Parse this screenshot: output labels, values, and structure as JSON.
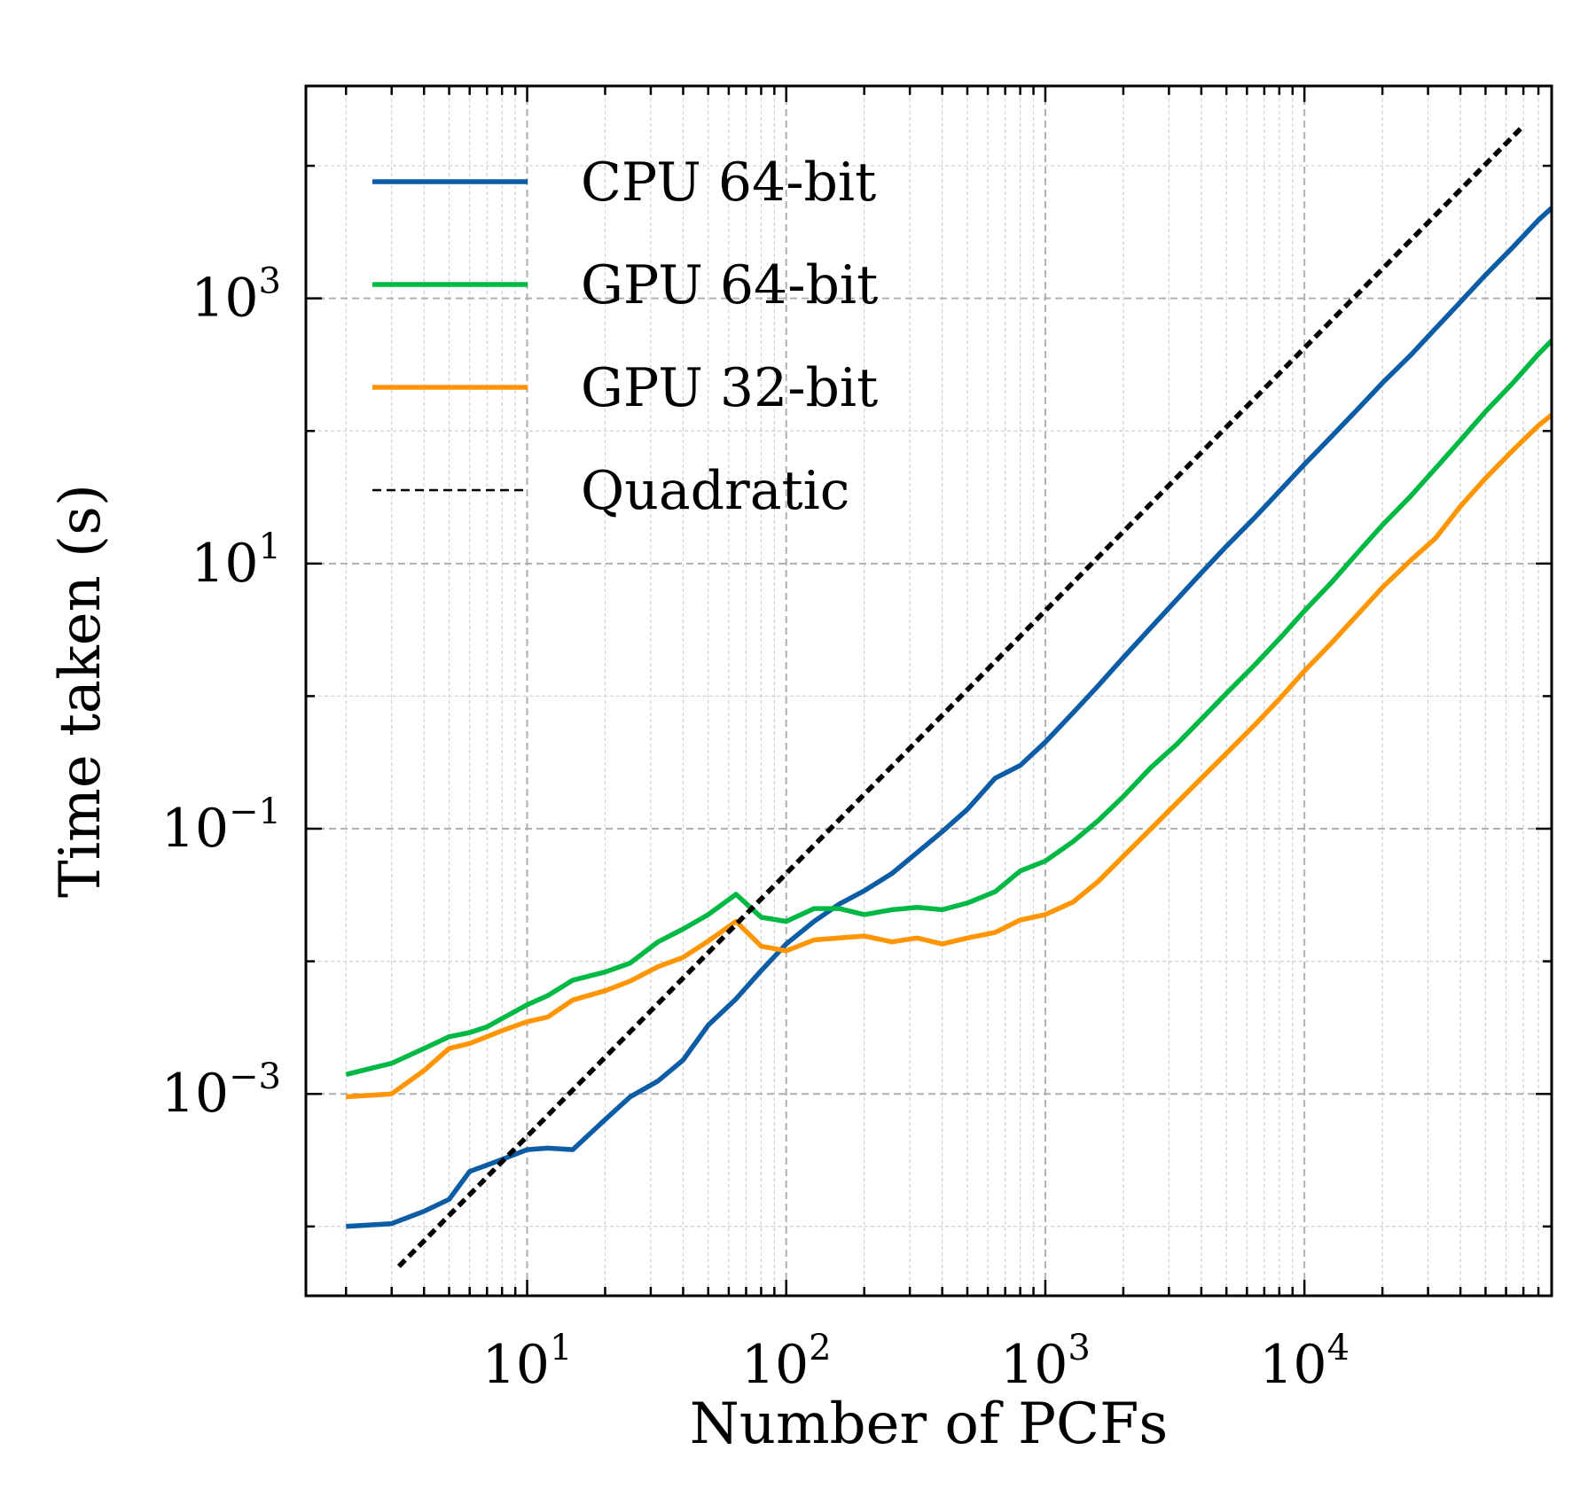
{
  "chart_data": {
    "type": "line",
    "title": "",
    "xlabel": "Number of PCFs",
    "ylabel": "Time taken (s)",
    "xscale": "log",
    "yscale": "log",
    "xlim": [
      1.4,
      90000
    ],
    "ylim": [
      3e-05,
      40000
    ],
    "grid": true,
    "legend_position": "top-left",
    "x_ticks": [
      {
        "value": 10,
        "base": "10",
        "exp": "1"
      },
      {
        "value": 100,
        "base": "10",
        "exp": "2"
      },
      {
        "value": 1000,
        "base": "10",
        "exp": "3"
      },
      {
        "value": 10000,
        "base": "10",
        "exp": "4"
      }
    ],
    "y_ticks": [
      {
        "value": 0.001,
        "base": "10",
        "exp": "−3"
      },
      {
        "value": 0.1,
        "base": "10",
        "exp": "−1"
      },
      {
        "value": 10,
        "base": "10",
        "exp": "1"
      },
      {
        "value": 1000,
        "base": "10",
        "exp": "3"
      }
    ],
    "series": [
      {
        "name": "CPU 64-bit",
        "color": "#0C5DA5",
        "dash": "",
        "points": [
          [
            2,
            0.0001
          ],
          [
            3,
            0.000105
          ],
          [
            4,
            0.00013
          ],
          [
            5,
            0.00016
          ],
          [
            6,
            0.00026
          ],
          [
            7,
            0.00029
          ],
          [
            8,
            0.00032
          ],
          [
            10,
            0.00038
          ],
          [
            12,
            0.00039
          ],
          [
            15,
            0.00038
          ],
          [
            20,
            0.00064
          ],
          [
            25,
            0.00095
          ],
          [
            32,
            0.00125
          ],
          [
            40,
            0.0018
          ],
          [
            50,
            0.0033
          ],
          [
            64,
            0.0052
          ],
          [
            80,
            0.0085
          ],
          [
            100,
            0.0135
          ],
          [
            128,
            0.02
          ],
          [
            160,
            0.027
          ],
          [
            200,
            0.034
          ],
          [
            256,
            0.046
          ],
          [
            320,
            0.066
          ],
          [
            400,
            0.095
          ],
          [
            500,
            0.14
          ],
          [
            640,
            0.24
          ],
          [
            800,
            0.3
          ],
          [
            1000,
            0.45
          ],
          [
            1280,
            0.75
          ],
          [
            1600,
            1.2
          ],
          [
            2000,
            1.95
          ],
          [
            2560,
            3.3
          ],
          [
            3200,
            5.3
          ],
          [
            4000,
            8.5
          ],
          [
            5000,
            13.5
          ],
          [
            6400,
            22
          ],
          [
            8000,
            35
          ],
          [
            10000,
            56
          ],
          [
            12800,
            92
          ],
          [
            16000,
            145
          ],
          [
            20000,
            230
          ],
          [
            25600,
            370
          ],
          [
            32000,
            590
          ],
          [
            40000,
            940
          ],
          [
            50000,
            1500
          ],
          [
            64000,
            2450
          ],
          [
            80000,
            3900
          ],
          [
            90000,
            4800
          ]
        ]
      },
      {
        "name": "GPU 64-bit",
        "color": "#00B945",
        "dash": "",
        "points": [
          [
            2,
            0.0014
          ],
          [
            3,
            0.0017
          ],
          [
            4,
            0.0022
          ],
          [
            5,
            0.0027
          ],
          [
            6,
            0.0029
          ],
          [
            7,
            0.0032
          ],
          [
            8,
            0.0037
          ],
          [
            10,
            0.0047
          ],
          [
            12,
            0.0055
          ],
          [
            15,
            0.0072
          ],
          [
            20,
            0.0083
          ],
          [
            25,
            0.0097
          ],
          [
            32,
            0.014
          ],
          [
            40,
            0.0175
          ],
          [
            50,
            0.0225
          ],
          [
            64,
            0.032
          ],
          [
            80,
            0.0215
          ],
          [
            100,
            0.02
          ],
          [
            128,
            0.025
          ],
          [
            160,
            0.025
          ],
          [
            200,
            0.0225
          ],
          [
            256,
            0.0245
          ],
          [
            320,
            0.0255
          ],
          [
            400,
            0.0245
          ],
          [
            500,
            0.0275
          ],
          [
            640,
            0.0335
          ],
          [
            800,
            0.048
          ],
          [
            1000,
            0.057
          ],
          [
            1280,
            0.08
          ],
          [
            1600,
            0.115
          ],
          [
            2000,
            0.175
          ],
          [
            2560,
            0.29
          ],
          [
            3200,
            0.43
          ],
          [
            4000,
            0.67
          ],
          [
            5000,
            1.05
          ],
          [
            6400,
            1.7
          ],
          [
            8000,
            2.7
          ],
          [
            10000,
            4.4
          ],
          [
            12800,
            7.3
          ],
          [
            16000,
            12.0
          ],
          [
            20000,
            19.5
          ],
          [
            25600,
            32
          ],
          [
            32000,
            52
          ],
          [
            40000,
            85
          ],
          [
            50000,
            140
          ],
          [
            64000,
            232
          ],
          [
            80000,
            380
          ],
          [
            90000,
            480
          ]
        ]
      },
      {
        "name": "GPU 32-bit",
        "color": "#FF9500",
        "dash": "",
        "points": [
          [
            2,
            0.00095
          ],
          [
            3,
            0.001
          ],
          [
            4,
            0.0015
          ],
          [
            5,
            0.0022
          ],
          [
            6,
            0.0024
          ],
          [
            7,
            0.0027
          ],
          [
            8,
            0.003
          ],
          [
            10,
            0.0035
          ],
          [
            12,
            0.0038
          ],
          [
            15,
            0.0051
          ],
          [
            20,
            0.006
          ],
          [
            25,
            0.0071
          ],
          [
            32,
            0.0091
          ],
          [
            40,
            0.0107
          ],
          [
            50,
            0.0142
          ],
          [
            64,
            0.02
          ],
          [
            80,
            0.013
          ],
          [
            100,
            0.012
          ],
          [
            128,
            0.0145
          ],
          [
            160,
            0.015
          ],
          [
            200,
            0.0155
          ],
          [
            256,
            0.014
          ],
          [
            320,
            0.015
          ],
          [
            400,
            0.0135
          ],
          [
            500,
            0.015
          ],
          [
            640,
            0.0165
          ],
          [
            800,
            0.0205
          ],
          [
            1000,
            0.0225
          ],
          [
            1280,
            0.028
          ],
          [
            1600,
            0.04
          ],
          [
            2000,
            0.062
          ],
          [
            2560,
            0.1
          ],
          [
            3200,
            0.155
          ],
          [
            4000,
            0.24
          ],
          [
            5000,
            0.37
          ],
          [
            6400,
            0.6
          ],
          [
            8000,
            0.95
          ],
          [
            10000,
            1.55
          ],
          [
            12800,
            2.55
          ],
          [
            16000,
            4.1
          ],
          [
            20000,
            6.6
          ],
          [
            25600,
            10.5
          ],
          [
            32000,
            15.5
          ],
          [
            40000,
            27
          ],
          [
            50000,
            44
          ],
          [
            64000,
            72
          ],
          [
            80000,
            110
          ],
          [
            90000,
            132
          ]
        ]
      },
      {
        "name": "Quadratic",
        "color": "#000000",
        "dash": "10 6",
        "points": [
          [
            3.2,
            5e-05
          ],
          [
            70000,
            20000
          ]
        ]
      }
    ]
  }
}
